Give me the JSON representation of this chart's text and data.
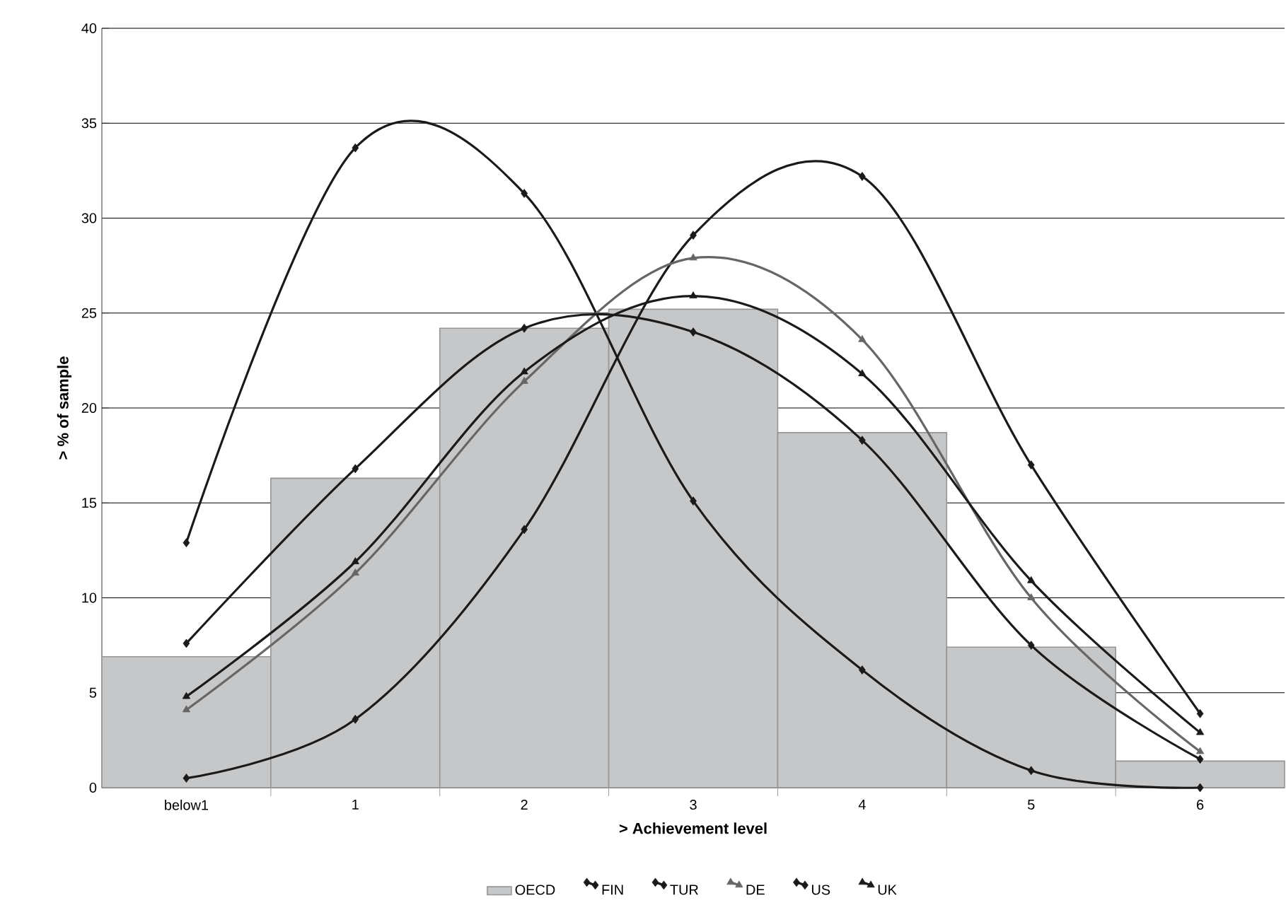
{
  "chart_data": {
    "type": "line",
    "xlabel": "> Achievement level",
    "ylabel": "> % of sample",
    "categories": [
      "below1",
      "1",
      "2",
      "3",
      "4",
      "5",
      "6"
    ],
    "ylim": [
      0,
      40
    ],
    "yticks": [
      0,
      5,
      10,
      15,
      20,
      25,
      30,
      35,
      40
    ],
    "grid": "y",
    "legend": "bottom",
    "series": [
      {
        "name": "OECD",
        "type": "bar",
        "color": "#c6c7c9",
        "values": [
          6.9,
          16.3,
          24.2,
          25.2,
          18.7,
          7.4,
          1.4
        ]
      },
      {
        "name": "FIN",
        "color": "#1a1a1a",
        "marker": "diamond",
        "values": [
          0.5,
          3.6,
          13.6,
          29.1,
          32.2,
          17.0,
          3.9
        ]
      },
      {
        "name": "TUR",
        "color": "#1a1a1a",
        "marker": "diamond",
        "values": [
          12.9,
          33.7,
          31.3,
          15.1,
          6.2,
          0.9,
          0.0
        ]
      },
      {
        "name": "DE",
        "color": "#666666",
        "marker": "triangle",
        "values": [
          4.1,
          11.3,
          21.4,
          27.9,
          23.6,
          10.0,
          1.9
        ]
      },
      {
        "name": "US",
        "color": "#1a1a1a",
        "marker": "diamond",
        "values": [
          7.6,
          16.8,
          24.2,
          24.0,
          18.3,
          7.5,
          1.5
        ]
      },
      {
        "name": "UK",
        "color": "#1a1a1a",
        "marker": "triangle",
        "values": [
          4.8,
          11.9,
          21.9,
          25.9,
          21.8,
          10.9,
          2.9
        ]
      }
    ]
  }
}
